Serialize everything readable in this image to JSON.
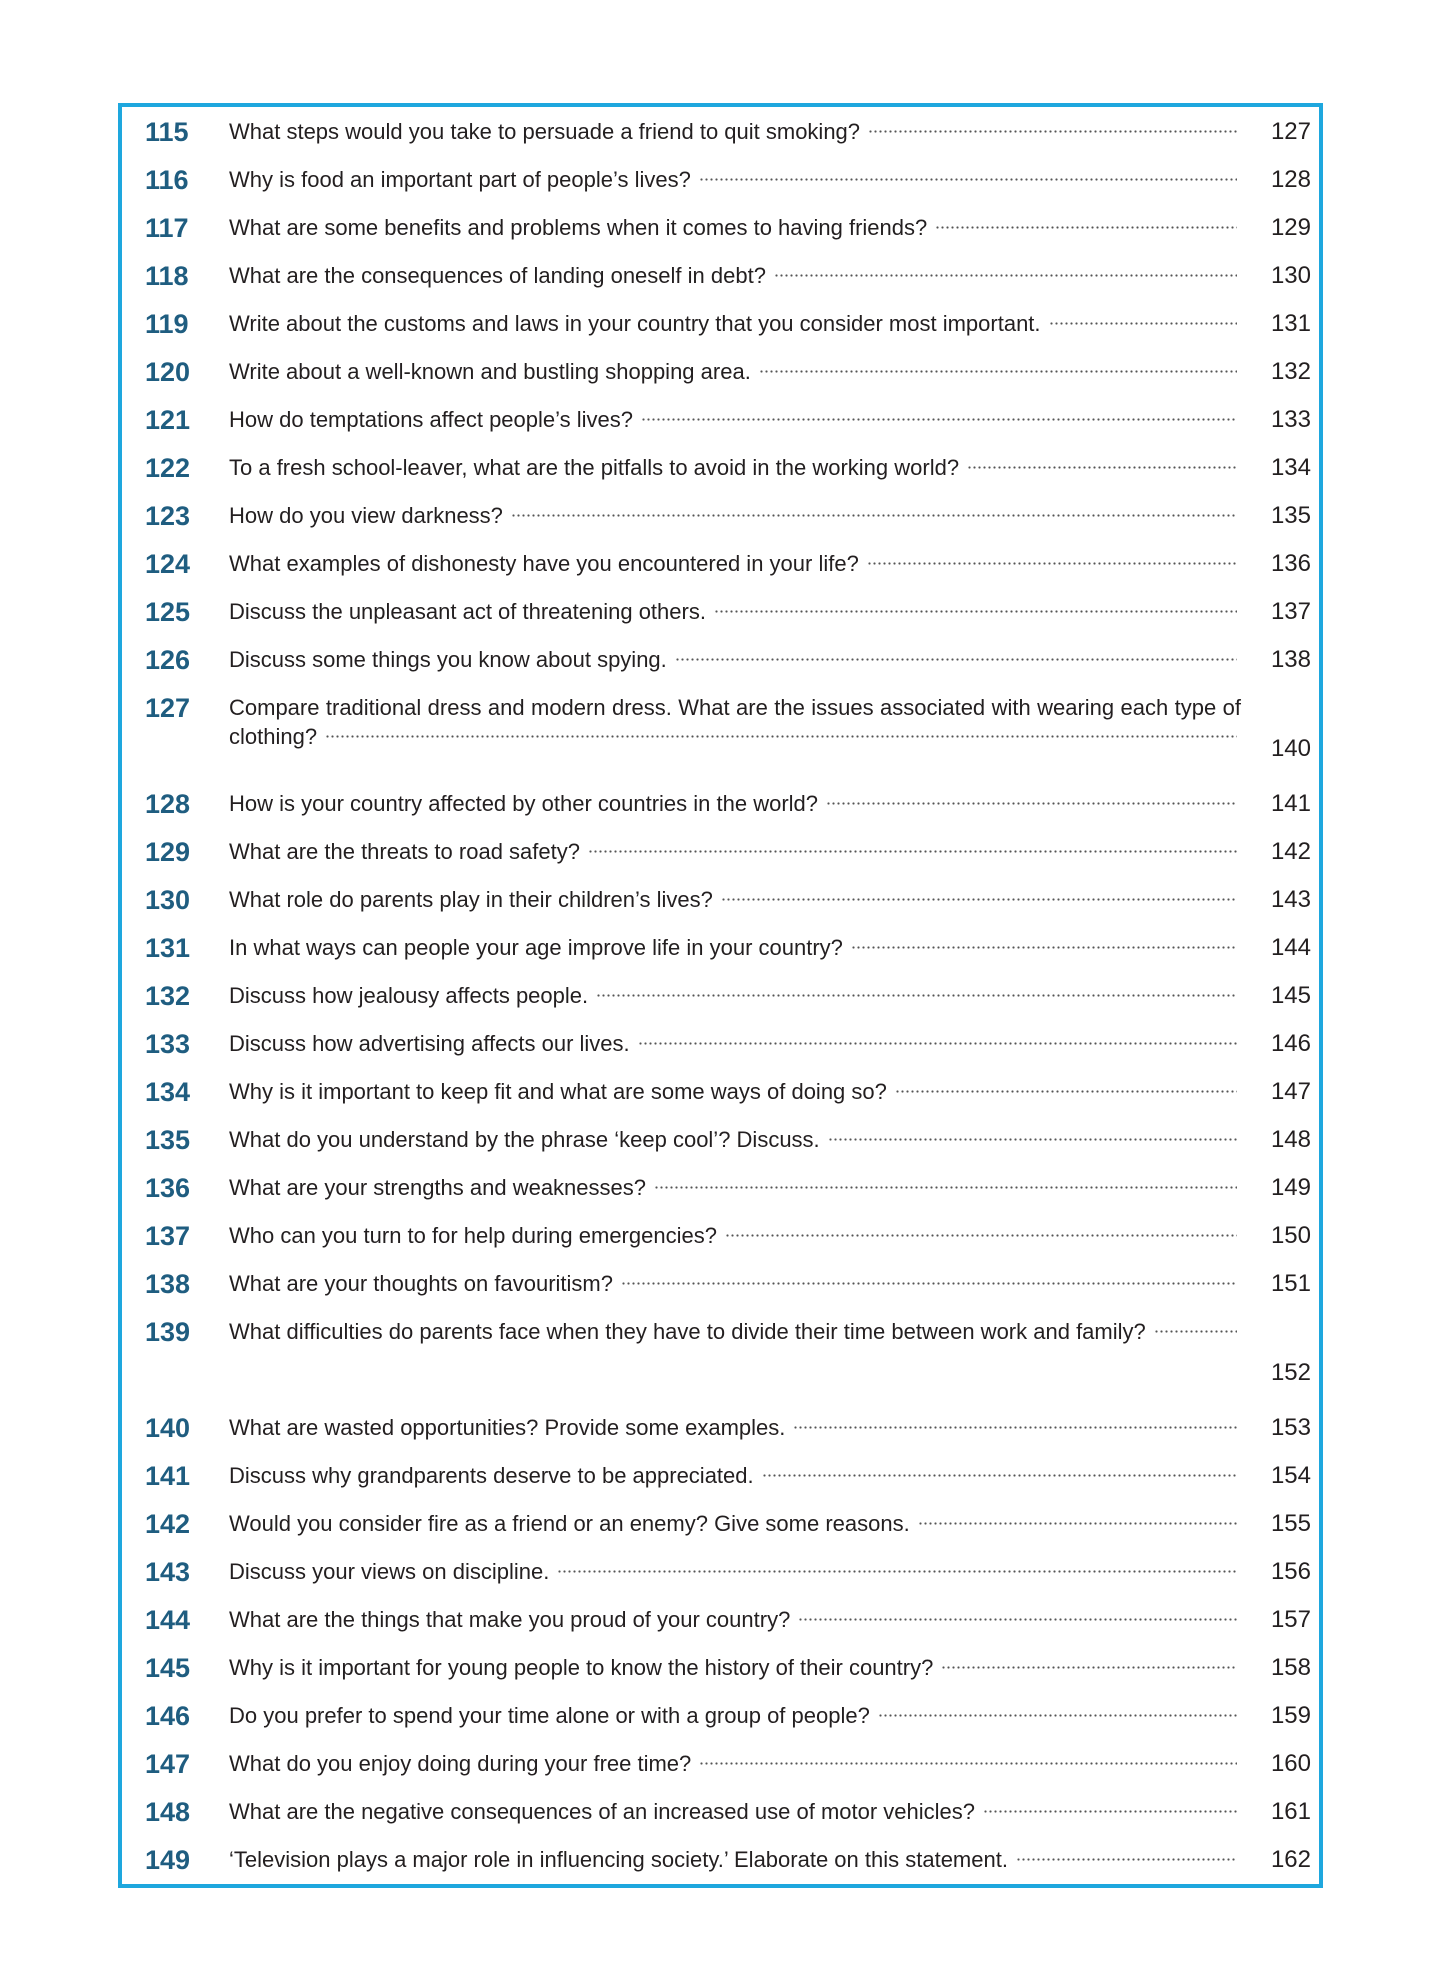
{
  "colors": {
    "border": "#1ea7de",
    "number": "#1f5d80"
  },
  "entries": [
    {
      "num": "115",
      "title": "What steps would you take to persuade a friend to quit smoking?",
      "page": "127"
    },
    {
      "num": "116",
      "title": "Why is food an important part of people’s lives?",
      "page": "128"
    },
    {
      "num": "117",
      "title": "What are some benefits and problems when it comes to having friends?",
      "page": "129"
    },
    {
      "num": "118",
      "title": "What are the consequences of landing oneself in debt?",
      "page": "130"
    },
    {
      "num": "119",
      "title": "Write about the customs and laws in your country that you consider most important.",
      "page": "131"
    },
    {
      "num": "120",
      "title": "Write about a well-known and bustling shopping area.",
      "page": "132"
    },
    {
      "num": "121",
      "title": "How do temptations affect people’s lives?",
      "page": "133"
    },
    {
      "num": "122",
      "title": "To a fresh school-leaver, what are the pitfalls to avoid in the working world?",
      "page": "134"
    },
    {
      "num": "123",
      "title": "How do you view darkness?",
      "page": "135"
    },
    {
      "num": "124",
      "title": "What examples of dishonesty have you encountered in your life?",
      "page": "136"
    },
    {
      "num": "125",
      "title": "Discuss the unpleasant act of threatening others.",
      "page": "137"
    },
    {
      "num": "126",
      "title": "Discuss some things you know about spying.",
      "page": "138"
    },
    {
      "num": "127",
      "title": "Compare traditional dress and modern dress. What are the issues associated with wearing each type of clothing?",
      "page": "140"
    },
    {
      "num": "128",
      "title": "How is your country affected by other countries in the world?",
      "page": "141"
    },
    {
      "num": "129",
      "title": "What are the threats to road safety?",
      "page": "142"
    },
    {
      "num": "130",
      "title": "What role do parents play in their children’s lives?",
      "page": "143"
    },
    {
      "num": "131",
      "title": "In what ways can people your age improve life in your country?",
      "page": "144"
    },
    {
      "num": "132",
      "title": "Discuss how jealousy affects people.",
      "page": "145"
    },
    {
      "num": "133",
      "title": "Discuss how advertising affects our lives.",
      "page": "146"
    },
    {
      "num": "134",
      "title": "Why is it important to keep fit and what are some ways of doing so?",
      "page": "147"
    },
    {
      "num": "135",
      "title": "What do you understand by the phrase ‘keep cool’? Discuss.",
      "page": "148"
    },
    {
      "num": "136",
      "title": "What are your strengths and weaknesses?",
      "page": "149"
    },
    {
      "num": "137",
      "title": "Who can you turn to for help during emergencies?",
      "page": "150"
    },
    {
      "num": "138",
      "title": "What are your thoughts on favouritism?",
      "page": "151"
    },
    {
      "num": "139",
      "title": "What difficulties do parents face when they have to divide their time between work and family?",
      "page": "152"
    },
    {
      "num": "140",
      "title": "What are wasted opportunities? Provide some examples.",
      "page": "153"
    },
    {
      "num": "141",
      "title": "Discuss why grandparents deserve to be appreciated.",
      "page": "154"
    },
    {
      "num": "142",
      "title": "Would you consider fire as a friend or an enemy? Give some reasons.",
      "page": "155"
    },
    {
      "num": "143",
      "title": "Discuss your views on discipline.",
      "page": "156"
    },
    {
      "num": "144",
      "title": "What are the things that make you proud of your country?",
      "page": "157"
    },
    {
      "num": "145",
      "title": "Why is it important for young people to know the history of their country?",
      "page": "158"
    },
    {
      "num": "146",
      "title": "Do you prefer to spend your time alone or with a group of people?",
      "page": "159"
    },
    {
      "num": "147",
      "title": "What do you enjoy doing during your free time?",
      "page": "160"
    },
    {
      "num": "148",
      "title": "What are the negative consequences of an increased use of motor vehicles?",
      "page": "161"
    },
    {
      "num": "149",
      "title": "‘Television plays a major role in influencing society.’ Elaborate on this statement.",
      "page": "162"
    }
  ]
}
